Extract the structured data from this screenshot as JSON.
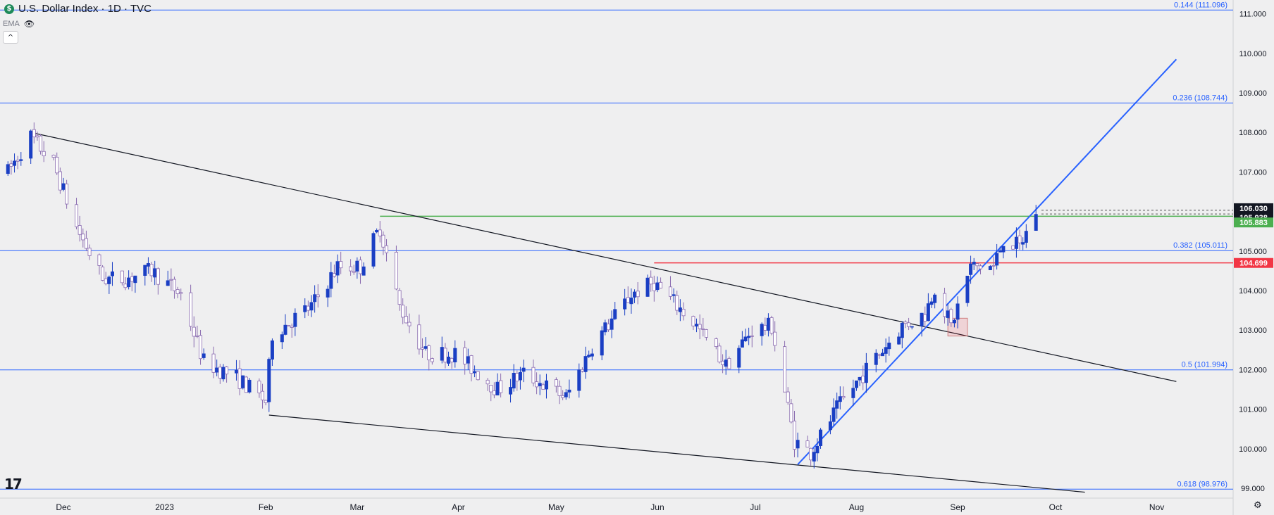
{
  "header": {
    "title": "U.S. Dollar Index · 1D · TVC",
    "logo_letter": "$",
    "indicator": "EMA",
    "indicator_icon": "eye-crossed-icon",
    "collapse_icon": "chevron-up-icon"
  },
  "footer": {
    "logo_text": "17",
    "settings_icon": "gear-icon"
  },
  "colors": {
    "background": "#efeff0",
    "up": "#1a3fc4",
    "down": "#8a6bb0",
    "fib": "#2962ff",
    "support": "#4caf50",
    "resistance": "#f23645",
    "trend": "#131722",
    "uptrend": "#2962ff"
  },
  "chart_data": {
    "type": "candlestick",
    "ylim": [
      98.75,
      111.35
    ],
    "y_ticks": [
      "99.000",
      "100.000",
      "101.000",
      "102.000",
      "103.000",
      "104.000",
      "105.000",
      "106.000",
      "107.000",
      "108.000",
      "109.000",
      "110.000",
      "111.000"
    ],
    "x_labels": [
      {
        "label": "Dec",
        "date": "2022-12-01"
      },
      {
        "label": "2023",
        "date": "2023-01-01"
      },
      {
        "label": "Feb",
        "date": "2023-02-01"
      },
      {
        "label": "Mar",
        "date": "2023-03-01"
      },
      {
        "label": "Apr",
        "date": "2023-04-01"
      },
      {
        "label": "May",
        "date": "2023-05-01"
      },
      {
        "label": "Jun",
        "date": "2023-06-01"
      },
      {
        "label": "Jul",
        "date": "2023-07-01"
      },
      {
        "label": "Aug",
        "date": "2023-08-01"
      },
      {
        "label": "Sep",
        "date": "2023-09-01"
      },
      {
        "label": "Oct",
        "date": "2023-10-01"
      },
      {
        "label": "Nov",
        "date": "2023-11-01"
      }
    ],
    "fib_levels": [
      {
        "label": "0.144 (111.096)",
        "value": 111.096
      },
      {
        "label": "0.236 (108.744)",
        "value": 108.744
      },
      {
        "label": "0.382 (105.011)",
        "value": 105.011
      },
      {
        "label": "0.5 (101.994)",
        "value": 101.994
      },
      {
        "label": "0.618 (98.976)",
        "value": 98.976
      }
    ],
    "price_labels": [
      {
        "text": "106.030",
        "value": 106.03,
        "style": "dark"
      },
      {
        "text": "105.938",
        "value": 105.938,
        "style": "dark"
      },
      {
        "text": "105.883",
        "value": 105.883,
        "style": "green"
      },
      {
        "text": "104.699",
        "value": 104.699,
        "style": "red"
      }
    ],
    "horizontal_lines": [
      {
        "kind": "support",
        "start": "2023-03-08",
        "value": 105.88
      },
      {
        "kind": "resistance",
        "start": "2023-05-31",
        "value": 104.7
      }
    ],
    "trendlines": [
      {
        "kind": "trend",
        "from": [
          "2022-11-21",
          108.0
        ],
        "to": [
          "2023-11-07",
          101.7
        ]
      },
      {
        "kind": "trend",
        "from": [
          "2023-02-02",
          100.85
        ],
        "to": [
          "2023-10-10",
          98.9
        ]
      },
      {
        "kind": "uptrend",
        "from": [
          "2023-07-14",
          99.6
        ],
        "to": [
          "2023-11-07",
          109.85
        ]
      }
    ],
    "highlight_box": {
      "from": "2023-08-29",
      "to": "2023-09-04",
      "low": 102.85,
      "high": 103.3
    },
    "anchors": [
      [
        "2022-11-14",
        107.0
      ],
      [
        "2022-11-21",
        107.9
      ],
      [
        "2022-11-28",
        107.2
      ],
      [
        "2022-12-05",
        105.6
      ],
      [
        "2022-12-13",
        104.3
      ],
      [
        "2022-12-20",
        104.3
      ],
      [
        "2022-12-28",
        104.5
      ],
      [
        "2023-01-06",
        103.9
      ],
      [
        "2023-01-13",
        102.2
      ],
      [
        "2023-01-23",
        101.8
      ],
      [
        "2023-02-01",
        101.2
      ],
      [
        "2023-02-03",
        102.9
      ],
      [
        "2023-02-15",
        103.6
      ],
      [
        "2023-02-23",
        104.6
      ],
      [
        "2023-03-02",
        104.6
      ],
      [
        "2023-03-08",
        105.6
      ],
      [
        "2023-03-14",
        103.6
      ],
      [
        "2023-03-22",
        102.4
      ],
      [
        "2023-03-31",
        102.4
      ],
      [
        "2023-04-13",
        101.5
      ],
      [
        "2023-04-21",
        101.9
      ],
      [
        "2023-05-04",
        101.3
      ],
      [
        "2023-05-12",
        102.6
      ],
      [
        "2023-05-24",
        103.9
      ],
      [
        "2023-05-31",
        104.2
      ],
      [
        "2023-06-12",
        103.2
      ],
      [
        "2023-06-22",
        102.1
      ],
      [
        "2023-06-30",
        103.0
      ],
      [
        "2023-07-06",
        103.1
      ],
      [
        "2023-07-13",
        100.2
      ],
      [
        "2023-07-18",
        99.9
      ],
      [
        "2023-07-26",
        101.0
      ],
      [
        "2023-08-04",
        102.0
      ],
      [
        "2023-08-15",
        103.1
      ],
      [
        "2023-08-22",
        103.4
      ],
      [
        "2023-08-25",
        104.1
      ],
      [
        "2023-08-30",
        103.1
      ],
      [
        "2023-09-05",
        104.6
      ],
      [
        "2023-09-12",
        104.6
      ],
      [
        "2023-09-15",
        105.3
      ],
      [
        "2023-09-20",
        105.1
      ],
      [
        "2023-09-25",
        106.0
      ]
    ]
  }
}
